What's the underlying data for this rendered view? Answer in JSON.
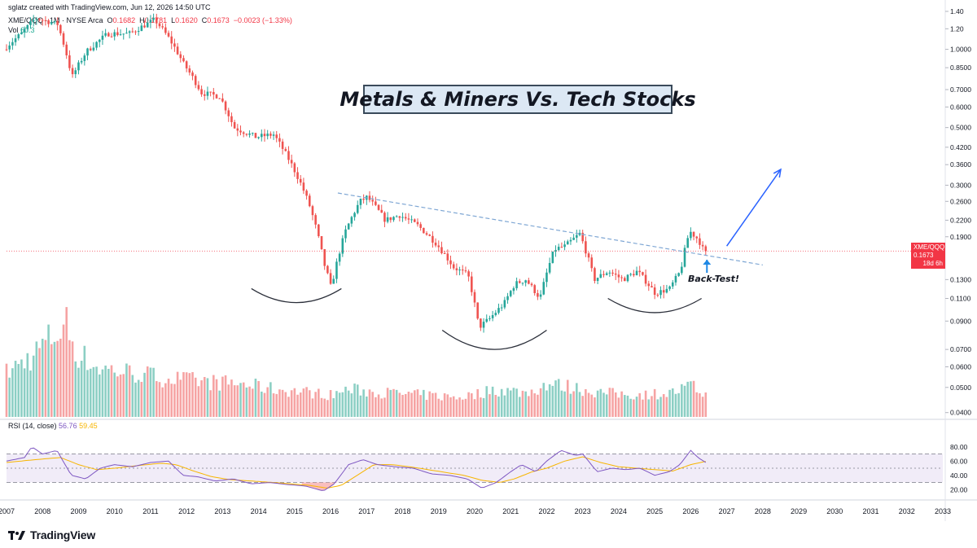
{
  "header": {
    "created_by": "sglatz created with TradingView.com, Jun 12, 2026 14:50 UTC"
  },
  "legend": {
    "symbol": "XME/QQQ · 1M · NYSE Arca",
    "open_label": "O",
    "open": "0.1682",
    "high_label": "H",
    "high": "0.1781",
    "low_label": "L",
    "low": "0.1620",
    "close_label": "C",
    "close": "0.1673",
    "change": "−0.0023 (−1.33%)",
    "volume_label": "Vol",
    "volume": "60.3"
  },
  "rsi_legend": {
    "label": "RSI (14, close)",
    "rsi_value": "56.76",
    "ma_value": "59.45"
  },
  "annotations": {
    "title": "Metals & Miners Vs. Tech Stocks",
    "backtest": "Back-Test!"
  },
  "price_tag": {
    "symbol": "XME/QQQ",
    "price": "0.1673",
    "countdown": "18d 6h"
  },
  "branding": {
    "logo_text": "TradingView"
  },
  "colors": {
    "up": "#26a69a",
    "down": "#ef5350",
    "vol_up": "#8ccfc4",
    "vol_down": "#f6a3a3",
    "trendline": "#7fa7d4",
    "arrow": "#2962ff",
    "rsi": "#7e57c2",
    "rsi_ma": "#f7b500",
    "rsi_band": "#ede7f6",
    "price_line": "#f23645"
  },
  "chart_data": {
    "type": "candlestick",
    "scale": "log",
    "y_axis_ticks": [
      "1.40",
      "1.20",
      "1.0000",
      "0.8500",
      "0.7000",
      "0.6000",
      "0.5000",
      "0.4200",
      "0.3600",
      "0.3000",
      "0.2600",
      "0.2200",
      "0.1900",
      "0.1300",
      "0.1100",
      "0.0900",
      "0.0700",
      "0.0600",
      "0.0500",
      "0.0400"
    ],
    "ylim": [
      0.0385,
      1.42
    ],
    "x_axis_ticks": [
      "2007",
      "2008",
      "2009",
      "2010",
      "2011",
      "2012",
      "2013",
      "2014",
      "2015",
      "2016",
      "2017",
      "2018",
      "2019",
      "2020",
      "2021",
      "2022",
      "2023",
      "2024",
      "2025",
      "2026",
      "2027",
      "2028",
      "2029",
      "2030",
      "2031",
      "2032",
      "2033"
    ],
    "x_range": [
      2007.0,
      2033.0
    ],
    "data_end": 2026.45,
    "price_path": [
      [
        2007.0,
        1.0
      ],
      [
        2007.5,
        1.15
      ],
      [
        2007.9,
        1.32
      ],
      [
        2008.5,
        1.25
      ],
      [
        2008.9,
        0.78
      ],
      [
        2009.3,
        0.98
      ],
      [
        2009.9,
        1.15
      ],
      [
        2010.5,
        1.15
      ],
      [
        2011.2,
        1.3
      ],
      [
        2011.6,
        1.1
      ],
      [
        2012.0,
        0.88
      ],
      [
        2012.5,
        0.68
      ],
      [
        2013.0,
        0.66
      ],
      [
        2013.4,
        0.5
      ],
      [
        2014.0,
        0.46
      ],
      [
        2014.5,
        0.47
      ],
      [
        2015.0,
        0.36
      ],
      [
        2015.5,
        0.25
      ],
      [
        2015.9,
        0.15
      ],
      [
        2016.1,
        0.12
      ],
      [
        2016.5,
        0.2
      ],
      [
        2016.9,
        0.26
      ],
      [
        2017.1,
        0.27
      ],
      [
        2017.6,
        0.22
      ],
      [
        2018.0,
        0.23
      ],
      [
        2018.5,
        0.21
      ],
      [
        2019.0,
        0.18
      ],
      [
        2019.5,
        0.145
      ],
      [
        2019.9,
        0.135
      ],
      [
        2020.2,
        0.085
      ],
      [
        2020.5,
        0.092
      ],
      [
        2020.9,
        0.105
      ],
      [
        2021.2,
        0.125
      ],
      [
        2021.5,
        0.13
      ],
      [
        2021.9,
        0.11
      ],
      [
        2022.3,
        0.17
      ],
      [
        2022.6,
        0.175
      ],
      [
        2023.0,
        0.195
      ],
      [
        2023.4,
        0.13
      ],
      [
        2023.8,
        0.14
      ],
      [
        2024.2,
        0.13
      ],
      [
        2024.6,
        0.14
      ],
      [
        2025.1,
        0.115
      ],
      [
        2025.5,
        0.12
      ],
      [
        2025.8,
        0.14
      ],
      [
        2026.05,
        0.2
      ],
      [
        2026.3,
        0.185
      ],
      [
        2026.45,
        0.1673
      ]
    ],
    "current_price": 0.1673,
    "trendline": [
      [
        2016.2,
        0.28
      ],
      [
        2028.0,
        0.148
      ]
    ],
    "arrow": [
      [
        2027.0,
        0.175
      ],
      [
        2028.5,
        0.345
      ]
    ],
    "cup_arcs": [
      {
        "x0": 2013.8,
        "x1": 2016.3,
        "y_mid": 0.106,
        "y_edge": 0.12
      },
      {
        "x0": 2019.1,
        "x1": 2022.0,
        "y_mid": 0.07,
        "y_edge": 0.083
      },
      {
        "x0": 2023.7,
        "x1": 2026.3,
        "y_mid": 0.097,
        "y_edge": 0.11
      }
    ],
    "volume_ylim": [
      0,
      100
    ],
    "volume_path": [
      [
        2007.0,
        40
      ],
      [
        2007.7,
        55
      ],
      [
        2008.0,
        65
      ],
      [
        2008.7,
        85
      ],
      [
        2008.9,
        60
      ],
      [
        2009.5,
        45
      ],
      [
        2010.5,
        40
      ],
      [
        2011.5,
        35
      ],
      [
        2012.5,
        32
      ],
      [
        2013.5,
        30
      ],
      [
        2014.5,
        25
      ],
      [
        2015.5,
        22
      ],
      [
        2016.0,
        20
      ],
      [
        2016.5,
        25
      ],
      [
        2017.5,
        22
      ],
      [
        2018.5,
        20
      ],
      [
        2019.5,
        18
      ],
      [
        2020.0,
        20
      ],
      [
        2020.5,
        25
      ],
      [
        2021.5,
        22
      ],
      [
        2022.0,
        30
      ],
      [
        2022.5,
        28
      ],
      [
        2023.5,
        22
      ],
      [
        2024.5,
        20
      ],
      [
        2025.5,
        22
      ],
      [
        2026.0,
        28
      ],
      [
        2026.45,
        20
      ]
    ],
    "rsi_ticks": [
      "80.00",
      "60.00",
      "40.00",
      "20.00"
    ],
    "rsi_ylim": [
      10,
      90
    ],
    "rsi_bands": [
      70,
      50,
      30
    ],
    "rsi_path": [
      [
        2007.0,
        60
      ],
      [
        2007.5,
        65
      ],
      [
        2007.7,
        80
      ],
      [
        2008.0,
        70
      ],
      [
        2008.4,
        75
      ],
      [
        2008.8,
        40
      ],
      [
        2009.2,
        35
      ],
      [
        2009.6,
        50
      ],
      [
        2010.0,
        55
      ],
      [
        2010.5,
        52
      ],
      [
        2011.0,
        58
      ],
      [
        2011.5,
        60
      ],
      [
        2011.9,
        40
      ],
      [
        2012.3,
        38
      ],
      [
        2012.8,
        32
      ],
      [
        2013.3,
        35
      ],
      [
        2013.8,
        28
      ],
      [
        2014.3,
        30
      ],
      [
        2014.8,
        27
      ],
      [
        2015.3,
        25
      ],
      [
        2015.8,
        18
      ],
      [
        2016.1,
        28
      ],
      [
        2016.5,
        55
      ],
      [
        2016.9,
        62
      ],
      [
        2017.3,
        55
      ],
      [
        2017.8,
        52
      ],
      [
        2018.3,
        50
      ],
      [
        2018.8,
        42
      ],
      [
        2019.3,
        40
      ],
      [
        2019.8,
        35
      ],
      [
        2020.2,
        22
      ],
      [
        2020.6,
        30
      ],
      [
        2021.0,
        45
      ],
      [
        2021.3,
        55
      ],
      [
        2021.7,
        45
      ],
      [
        2022.0,
        60
      ],
      [
        2022.4,
        75
      ],
      [
        2022.8,
        68
      ],
      [
        2023.0,
        70
      ],
      [
        2023.4,
        45
      ],
      [
        2023.8,
        50
      ],
      [
        2024.2,
        48
      ],
      [
        2024.6,
        50
      ],
      [
        2025.0,
        40
      ],
      [
        2025.4,
        45
      ],
      [
        2025.7,
        55
      ],
      [
        2026.0,
        75
      ],
      [
        2026.2,
        65
      ],
      [
        2026.45,
        57
      ]
    ],
    "rsi_ma_path": [
      [
        2007.0,
        58
      ],
      [
        2007.8,
        62
      ],
      [
        2008.5,
        65
      ],
      [
        2009.0,
        55
      ],
      [
        2009.5,
        48
      ],
      [
        2010.0,
        50
      ],
      [
        2010.7,
        54
      ],
      [
        2011.3,
        57
      ],
      [
        2011.7,
        55
      ],
      [
        2012.2,
        46
      ],
      [
        2012.7,
        38
      ],
      [
        2013.2,
        34
      ],
      [
        2013.8,
        32
      ],
      [
        2014.4,
        30
      ],
      [
        2014.9,
        28
      ],
      [
        2015.4,
        26
      ],
      [
        2015.9,
        22
      ],
      [
        2016.3,
        26
      ],
      [
        2016.8,
        42
      ],
      [
        2017.2,
        55
      ],
      [
        2017.7,
        55
      ],
      [
        2018.2,
        52
      ],
      [
        2018.7,
        48
      ],
      [
        2019.2,
        44
      ],
      [
        2019.7,
        40
      ],
      [
        2020.2,
        33
      ],
      [
        2020.7,
        30
      ],
      [
        2021.1,
        35
      ],
      [
        2021.6,
        45
      ],
      [
        2022.0,
        50
      ],
      [
        2022.5,
        60
      ],
      [
        2023.0,
        66
      ],
      [
        2023.5,
        58
      ],
      [
        2024.0,
        52
      ],
      [
        2024.5,
        50
      ],
      [
        2025.0,
        48
      ],
      [
        2025.5,
        46
      ],
      [
        2026.0,
        55
      ],
      [
        2026.45,
        60
      ]
    ]
  }
}
